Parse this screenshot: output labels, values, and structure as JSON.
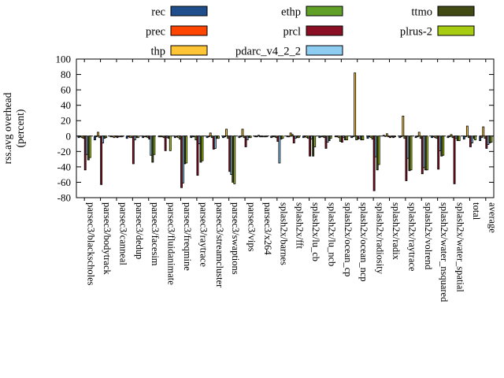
{
  "chart_data": {
    "type": "bar",
    "title": "",
    "ylabel_line1": "rss.avg overhead",
    "ylabel_line2": "(percent)",
    "ylim": [
      -80,
      100
    ],
    "ytick_step": 20,
    "grid": false,
    "legend_position": "top",
    "background": "#ffffff",
    "axis_color": "#000000",
    "categories": [
      "parsec3/blackscholes",
      "parsec3/bodytrack",
      "parsec3/canneal",
      "parsec3/dedup",
      "parsec3/facesim",
      "parsec3/fluidanimate",
      "parsec3/freqmine",
      "parsec3/raytrace",
      "parsec3/streamcluster",
      "parsec3/swaptions",
      "parsec3/vips",
      "parsec3/x264",
      "splash2x/barnes",
      "splash2x/fft",
      "splash2x/lu_cb",
      "splash2x/lu_ncb",
      "splash2x/ocean_cp",
      "splash2x/ocean_ncp",
      "splash2x/radiosity",
      "splash2x/radix",
      "splash2x/raytrace",
      "splash2x/volrend",
      "splash2x/water_nsquared",
      "splash2x/water_spatial",
      "total",
      "average"
    ],
    "series": [
      {
        "name": "rec",
        "color": "#1f4e8c",
        "values": [
          -2,
          -5,
          -1,
          -3,
          -2,
          -1,
          -2,
          -2,
          -2,
          -2,
          -2,
          -1,
          -2,
          -1,
          -2,
          -2,
          -1,
          -2,
          -3,
          1,
          -2,
          -2,
          -2,
          -2,
          -4,
          -6
        ]
      },
      {
        "name": "prec",
        "color": "#ff4500",
        "values": [
          -1,
          -1,
          -1,
          -1,
          -1,
          -1,
          -1,
          -1,
          -1,
          -1,
          -1,
          -1,
          -1,
          -1,
          -1,
          -1,
          -1,
          -1,
          -1,
          0,
          -1,
          -1,
          -1,
          -1,
          -1,
          -2
        ]
      },
      {
        "name": "thp",
        "color": "#fdc435",
        "values": [
          -2,
          5,
          -2,
          -2,
          -1,
          -1,
          -2,
          -1,
          4,
          9,
          9,
          1,
          -1,
          4,
          -2,
          -1,
          -2,
          82,
          -2,
          3,
          26,
          5,
          -2,
          2,
          13,
          12
        ]
      },
      {
        "name": "ethp",
        "color": "#61a026",
        "values": [
          -3,
          -2,
          -1,
          -2,
          -2,
          -2,
          -4,
          -5,
          -2,
          -3,
          -2,
          -1,
          -2,
          2,
          -3,
          -2,
          -7,
          -5,
          -4,
          -1,
          -3,
          -3,
          -3,
          -2,
          -2,
          -3
        ]
      },
      {
        "name": "prcl",
        "color": "#8b0f24",
        "values": [
          -44,
          -63,
          -2,
          -36,
          -4,
          -19,
          -67,
          -51,
          -17,
          -46,
          -14,
          -1,
          -7,
          -9,
          -26,
          -16,
          -8,
          -4,
          -71,
          -2,
          -58,
          -49,
          -43,
          -62,
          -14,
          -16
        ]
      },
      {
        "name": "pdarc_v4_2_2",
        "color": "#8ecdf2",
        "values": [
          -24,
          -9,
          -1,
          -5,
          -25,
          -2,
          -61,
          -10,
          -16,
          -50,
          -5,
          -1,
          -35,
          -3,
          -4,
          -8,
          -2,
          -3,
          -27,
          -1,
          -29,
          -41,
          -19,
          -3,
          -9,
          -11
        ]
      },
      {
        "name": "ttmo",
        "color": "#404a12",
        "values": [
          -31,
          -3,
          -1,
          -2,
          -34,
          -3,
          -36,
          -34,
          -3,
          -60,
          -2,
          -1,
          -4,
          -2,
          -26,
          -6,
          -5,
          -5,
          -44,
          -2,
          -45,
          -44,
          -26,
          -6,
          -3,
          -9
        ]
      },
      {
        "name": "plrus-2",
        "color": "#a8cc12",
        "values": [
          -28,
          -2,
          -1,
          -2,
          -24,
          -19,
          -35,
          -32,
          -3,
          -62,
          -2,
          -1,
          -3,
          -2,
          -14,
          -3,
          -5,
          -5,
          -37,
          -1,
          -44,
          -44,
          -25,
          -6,
          -5,
          -8
        ]
      }
    ],
    "legend_columns": [
      [
        "rec",
        "prec",
        "thp"
      ],
      [
        "ethp",
        "prcl",
        "pdarc_v4_2_2"
      ],
      [
        "ttmo",
        "plrus-2"
      ]
    ]
  }
}
